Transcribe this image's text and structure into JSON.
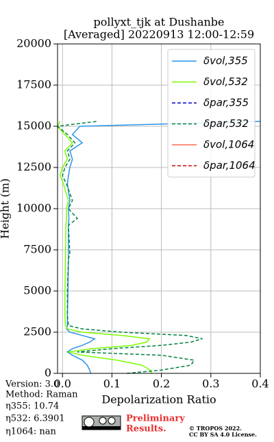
{
  "chart_data": {
    "type": "profile",
    "title": "pollyxt_tjk at Dushanbe",
    "subtitle": "[Averaged] 20220913 12:00-12:59",
    "x_label": "Depolarization Ratio",
    "y_label": "Height (m)",
    "heights": [
      0,
      200,
      500,
      800,
      1100,
      1300,
      1500,
      1700,
      1900,
      2100,
      2300,
      2500,
      2700,
      2900,
      3500,
      5000,
      7000,
      7200,
      9000,
      9400,
      10000,
      10500,
      11500,
      12000,
      12500,
      13000,
      13500,
      14000,
      14500,
      15000,
      15300,
      15500
    ],
    "series": [
      {
        "name": "δvol,355",
        "color": "#2a94e8",
        "dash": false,
        "values": [
          0.057,
          0.055,
          0.05,
          0.04,
          0.02,
          0.01,
          0.02,
          0.04,
          0.055,
          0.065,
          0.04,
          0.015,
          0.008,
          0.01,
          0.01,
          0.011,
          0.012,
          0.012,
          0.012,
          0.013,
          0.012,
          0.015,
          0.01,
          0.012,
          0.015,
          0.02,
          0.015,
          0.04,
          0.02,
          0.035,
          0.4,
          null
        ]
      },
      {
        "name": "δvol,532",
        "color": "#7cfc00",
        "dash": false,
        "values": [
          0.18,
          0.178,
          0.16,
          0.11,
          0.04,
          0.012,
          0.06,
          0.14,
          0.17,
          0.176,
          0.12,
          0.04,
          0.01,
          0.006,
          0.005,
          0.005,
          0.006,
          0.006,
          0.007,
          0.008,
          0.008,
          0.012,
          0.002,
          -0.005,
          0.0,
          0.01,
          0.005,
          0.02,
          0.005,
          -0.01,
          -0.005,
          null
        ]
      },
      {
        "name": "δpar,355",
        "color": "#0000cd",
        "dash": true,
        "values": [
          null,
          null,
          null,
          null,
          null,
          null,
          null,
          null,
          null,
          null,
          null,
          null,
          null,
          null,
          null,
          null,
          null,
          null,
          null,
          null,
          null,
          null,
          null,
          null,
          null,
          null,
          null,
          null,
          null,
          null,
          null,
          null
        ]
      },
      {
        "name": "δpar,532",
        "color": "#008040",
        "dash": true,
        "values": [
          0.13,
          0.2,
          0.26,
          0.266,
          0.2,
          0.03,
          0.1,
          0.2,
          0.26,
          0.283,
          0.25,
          0.12,
          0.04,
          0.012,
          0.01,
          0.01,
          0.012,
          0.015,
          0.012,
          0.03,
          0.012,
          0.02,
          0.008,
          0.0,
          0.005,
          0.015,
          0.01,
          0.025,
          0.01,
          -0.01,
          0.07,
          null
        ]
      },
      {
        "name": "δvol,1064",
        "color": "#f46d50",
        "dash": false,
        "values": [
          null,
          null,
          null,
          null,
          null,
          null,
          null,
          null,
          null,
          null,
          null,
          null,
          null,
          null,
          null,
          null,
          null,
          null,
          null,
          null,
          null,
          null,
          null,
          null,
          null,
          null,
          null,
          null,
          null,
          null,
          null,
          null
        ]
      },
      {
        "name": "δpar,1064",
        "color": "#cc0000",
        "dash": true,
        "values": [
          null,
          null,
          null,
          null,
          null,
          null,
          null,
          null,
          null,
          null,
          null,
          null,
          null,
          null,
          null,
          null,
          null,
          null,
          null,
          null,
          null,
          null,
          null,
          null,
          null,
          null,
          null,
          null,
          null,
          null,
          null,
          null
        ]
      }
    ],
    "xlim": [
      -0.01,
      0.4
    ],
    "ylim": [
      0,
      20000
    ],
    "xticks": [
      {
        "value": 0,
        "label": "0.0"
      },
      0.1,
      0.2,
      0.3,
      0.4
    ],
    "yticks": [
      0,
      2500,
      5000,
      7500,
      10000,
      12500,
      15000,
      17500,
      20000
    ],
    "grid": true,
    "legend": "upper right"
  },
  "info": {
    "version": "Version: 3.0",
    "method": "Method: Raman",
    "eta355": "η355:  10.74",
    "eta532": "η532: 6.3901",
    "eta1064": "η1064:    nan"
  },
  "notice": {
    "preliminary": "Preliminary",
    "results": "Results.",
    "copyright": "© TROPOS 2022.",
    "license": "CC BY SA 4.0 License."
  }
}
